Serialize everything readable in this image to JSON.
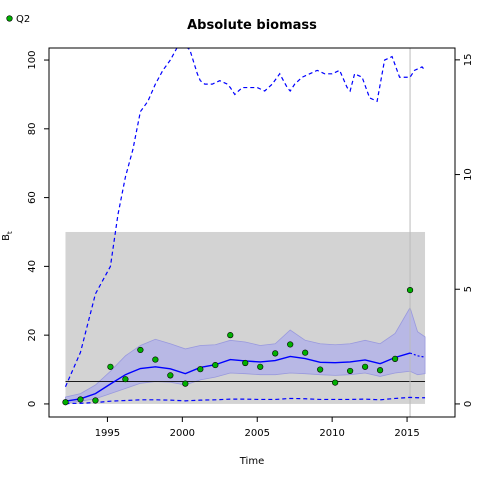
{
  "chart_data": {
    "type": "line",
    "title": "Absolute biomass",
    "xlabel": "Time",
    "ylabel": "B",
    "ylabel_subscript": "t",
    "xlim": [
      1991.1,
      2018.2
    ],
    "ylim": [
      -3.8,
      103.5
    ],
    "x_ticks": [
      1995,
      2000,
      2005,
      2010,
      2015
    ],
    "y_ticks": [
      0,
      20,
      40,
      60,
      80,
      100
    ],
    "y2_ticks": [
      0,
      5,
      10,
      15
    ],
    "y2_scale_per_unit": 6.67,
    "legend": {
      "entries": [
        "Q2"
      ],
      "position": "top-left"
    },
    "colors": {
      "estimate": "#0000ff",
      "ci_band": "#b3b3e8",
      "shaded_region": "#d3d3d3",
      "points": "#00b000",
      "reference_line": "#000000",
      "vertical_line": "#bbbbbb"
    },
    "shaded_region": {
      "x": [
        1992.2,
        2016.2
      ],
      "y": [
        0,
        50
      ]
    },
    "reference_line_y": 6.5,
    "vertical_line_x": 2015.2,
    "observations_Q2": {
      "name": "Q2",
      "x": [
        1992.2,
        1993.2,
        1994.2,
        1995.2,
        1996.2,
        1997.2,
        1998.2,
        1999.2,
        2000.2,
        2001.2,
        2002.2,
        2003.2,
        2004.2,
        2005.2,
        2006.2,
        2007.2,
        2008.2,
        2009.2,
        2010.2,
        2011.2,
        2012.2,
        2013.2,
        2014.2,
        2015.2
      ],
      "y": [
        0.5,
        1.3,
        1.0,
        10.8,
        7.2,
        15.7,
        12.9,
        8.3,
        5.9,
        10.1,
        11.3,
        20.0,
        11.9,
        10.8,
        14.7,
        17.3,
        14.9,
        10.0,
        6.2,
        9.6,
        10.8,
        9.8,
        13.1,
        33.1
      ]
    },
    "biomass_estimate": {
      "x": [
        1992.2,
        1993.2,
        1994.2,
        1995.2,
        1996.2,
        1997.2,
        1998.2,
        1999.2,
        2000.2,
        2001.2,
        2002.2,
        2003.2,
        2004.2,
        2005.2,
        2006.2,
        2007.2,
        2008.2,
        2009.2,
        2010.2,
        2011.2,
        2012.2,
        2013.2,
        2014.2,
        2015.2
      ],
      "y": [
        0.8,
        1.5,
        3.0,
        5.8,
        8.5,
        10.3,
        10.8,
        10.2,
        8.8,
        10.6,
        11.4,
        12.9,
        12.5,
        12.2,
        12.6,
        13.8,
        13.2,
        12.1,
        12.0,
        12.2,
        12.8,
        11.7,
        13.5,
        14.8
      ]
    },
    "biomass_forecast": {
      "x": [
        2015.2,
        2015.7,
        2016.2
      ],
      "y": [
        14.8,
        14.0,
        13.6
      ]
    },
    "biomass_ci_upper": {
      "x": [
        1992.2,
        1993.2,
        1994.2,
        1995.2,
        1996.2,
        1997.2,
        1998.2,
        1999.2,
        2000.2,
        2001.2,
        2002.2,
        2003.2,
        2004.2,
        2005.2,
        2006.2,
        2007.2,
        2008.2,
        2009.2,
        2010.2,
        2011.2,
        2012.2,
        2013.2,
        2014.2,
        2015.2,
        2015.7,
        2016.2
      ],
      "y": [
        2.0,
        3.0,
        5.5,
        9.5,
        14.0,
        17.0,
        18.8,
        17.5,
        16.0,
        17.0,
        17.2,
        18.5,
        18.0,
        17.0,
        17.5,
        21.5,
        18.5,
        17.5,
        17.2,
        17.5,
        18.5,
        17.5,
        20.5,
        28.0,
        21.0,
        19.5
      ]
    },
    "biomass_ci_lower": {
      "x": [
        1992.2,
        1993.2,
        1994.2,
        1995.2,
        1996.2,
        1997.2,
        1998.2,
        1999.2,
        2000.2,
        2001.2,
        2002.2,
        2003.2,
        2004.2,
        2005.2,
        2006.2,
        2007.2,
        2008.2,
        2009.2,
        2010.2,
        2011.2,
        2012.2,
        2013.2,
        2014.2,
        2015.2,
        2015.7,
        2016.2
      ],
      "y": [
        0.3,
        0.8,
        1.5,
        3.0,
        4.5,
        6.0,
        6.5,
        6.3,
        5.5,
        7.0,
        7.8,
        9.0,
        8.8,
        8.5,
        8.5,
        9.0,
        8.8,
        8.5,
        8.3,
        8.5,
        9.0,
        8.0,
        9.0,
        9.5,
        8.5,
        8.8
      ]
    },
    "ci_upper_dashed_line": {
      "x": [
        1992.2,
        1993.2,
        1994.2,
        1995.2,
        1995.7,
        1996.2,
        1996.7,
        1997.2,
        1997.7,
        1998.2,
        1998.7,
        1999.2,
        1999.7,
        2000.0,
        2000.2,
        2000.5,
        2001.0,
        2001.2,
        2001.5,
        2002.0,
        2002.5,
        2003.0,
        2003.2,
        2003.5,
        2004.0,
        2004.5,
        2005.0,
        2005.5,
        2006.0,
        2006.5,
        2007.0,
        2007.2,
        2007.5,
        2008.0,
        2008.5,
        2009.0,
        2009.5,
        2010.0,
        2010.5,
        2011.0,
        2011.2,
        2011.5,
        2012.0,
        2012.5,
        2013.0,
        2013.5,
        2014.0,
        2014.5,
        2015.0,
        2015.2,
        2015.5,
        2016.0,
        2016.2
      ],
      "y": [
        5,
        15,
        32,
        40,
        55,
        66,
        74,
        85,
        88,
        93,
        97,
        100,
        104,
        104,
        104,
        103,
        96,
        94,
        93,
        93,
        94,
        93,
        92,
        90,
        92,
        92,
        92,
        91,
        93,
        96,
        92,
        91,
        93,
        95,
        96,
        97,
        96,
        96,
        97,
        92,
        91,
        96,
        95,
        89,
        88,
        100,
        101,
        95,
        95,
        95,
        97,
        98,
        97
      ]
    },
    "ci_lower_dashed_line": {
      "x": [
        1992.2,
        1993.2,
        1994.2,
        1995.2,
        1996.2,
        1997.2,
        1998.2,
        1999.2,
        2000.2,
        2001.2,
        2002.2,
        2003.2,
        2004.2,
        2005.2,
        2006.2,
        2007.2,
        2008.2,
        2009.2,
        2010.2,
        2011.2,
        2012.2,
        2013.2,
        2014.2,
        2015.2,
        2015.7,
        2016.2
      ],
      "y": [
        0.1,
        0.2,
        0.4,
        0.8,
        1.0,
        1.2,
        1.2,
        1.1,
        0.9,
        1.1,
        1.2,
        1.4,
        1.4,
        1.3,
        1.3,
        1.6,
        1.5,
        1.3,
        1.3,
        1.3,
        1.4,
        1.2,
        1.6,
        1.9,
        1.8,
        1.8
      ]
    }
  }
}
